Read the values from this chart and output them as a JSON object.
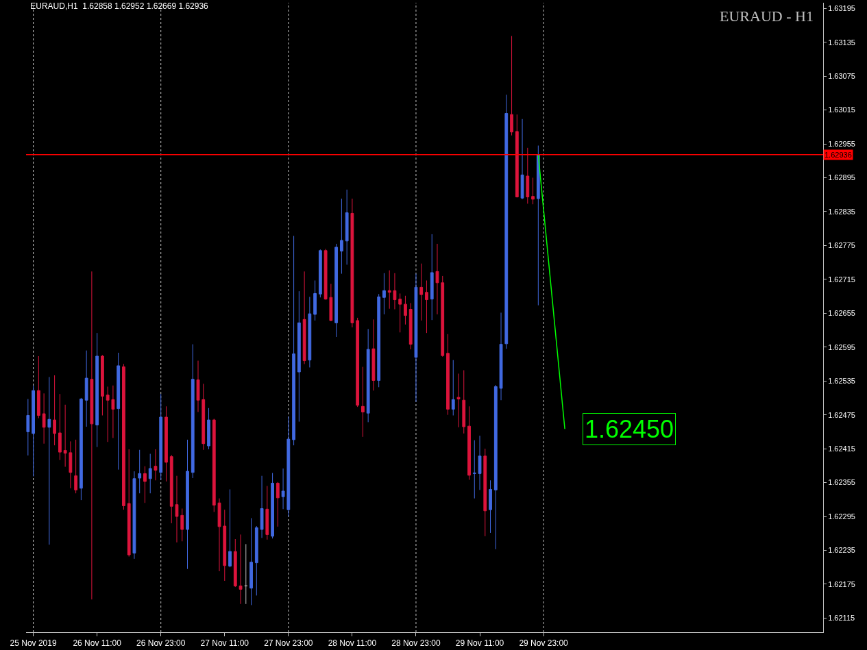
{
  "chart_data": {
    "type": "candlestick",
    "title": "EURAUD,H1  1.62858 1.62952 1.62669 1.62936",
    "subtitle": "EURAUD - H1",
    "x": [
      "2019-11-25T22:00",
      "2019-11-25T23:00",
      "2019-11-26T00:00",
      "2019-11-26T01:00",
      "2019-11-26T02:00",
      "2019-11-26T03:00",
      "2019-11-26T04:00",
      "2019-11-26T05:00",
      "2019-11-26T06:00",
      "2019-11-26T07:00",
      "2019-11-26T08:00",
      "2019-11-26T09:00",
      "2019-11-26T10:00",
      "2019-11-26T11:00",
      "2019-11-26T12:00",
      "2019-11-26T13:00",
      "2019-11-26T14:00",
      "2019-11-26T15:00",
      "2019-11-26T16:00",
      "2019-11-26T17:00",
      "2019-11-26T18:00",
      "2019-11-26T19:00",
      "2019-11-26T20:00",
      "2019-11-26T21:00",
      "2019-11-26T22:00",
      "2019-11-26T23:00",
      "2019-11-27T00:00",
      "2019-11-27T01:00",
      "2019-11-27T02:00",
      "2019-11-27T03:00",
      "2019-11-27T04:00",
      "2019-11-27T05:00",
      "2019-11-27T06:00",
      "2019-11-27T07:00",
      "2019-11-27T08:00",
      "2019-11-27T09:00",
      "2019-11-27T10:00",
      "2019-11-27T11:00",
      "2019-11-27T12:00",
      "2019-11-27T13:00",
      "2019-11-27T14:00",
      "2019-11-27T15:00",
      "2019-11-27T16:00",
      "2019-11-27T17:00",
      "2019-11-27T18:00",
      "2019-11-27T19:00",
      "2019-11-27T20:00",
      "2019-11-27T21:00",
      "2019-11-27T22:00",
      "2019-11-27T23:00",
      "2019-11-28T00:00",
      "2019-11-28T01:00",
      "2019-11-28T02:00",
      "2019-11-28T03:00",
      "2019-11-28T04:00",
      "2019-11-28T05:00",
      "2019-11-28T06:00",
      "2019-11-28T07:00",
      "2019-11-28T08:00",
      "2019-11-28T09:00",
      "2019-11-28T10:00",
      "2019-11-28T11:00",
      "2019-11-28T12:00",
      "2019-11-28T13:00",
      "2019-11-28T14:00",
      "2019-11-28T15:00",
      "2019-11-28T16:00",
      "2019-11-28T17:00",
      "2019-11-28T18:00",
      "2019-11-28T19:00",
      "2019-11-28T20:00",
      "2019-11-28T21:00",
      "2019-11-28T22:00",
      "2019-11-28T23:00",
      "2019-11-29T00:00",
      "2019-11-29T01:00",
      "2019-11-29T02:00",
      "2019-11-29T03:00",
      "2019-11-29T04:00",
      "2019-11-29T05:00",
      "2019-11-29T06:00",
      "2019-11-29T07:00",
      "2019-11-29T08:00",
      "2019-11-29T09:00",
      "2019-11-29T10:00",
      "2019-11-29T11:00",
      "2019-11-29T12:00",
      "2019-11-29T13:00",
      "2019-11-29T14:00",
      "2019-11-29T15:00",
      "2019-11-29T16:00",
      "2019-11-29T17:00",
      "2019-11-29T18:00",
      "2019-11-29T19:00",
      "2019-11-29T20:00",
      "2019-11-29T21:00",
      "2019-11-29T22:00"
    ],
    "ohlc": [
      [
        1.62445,
        1.62503,
        1.62403,
        1.62474
      ],
      [
        1.62442,
        1.62527,
        1.62366,
        1.62518
      ],
      [
        1.62518,
        1.62579,
        1.62469,
        1.62474
      ],
      [
        1.62477,
        1.62513,
        1.62424,
        1.62453
      ],
      [
        1.62453,
        1.62542,
        1.62245,
        1.62467
      ],
      [
        1.62466,
        1.62545,
        1.62421,
        1.62442
      ],
      [
        1.62443,
        1.62512,
        1.62395,
        1.62409
      ],
      [
        1.62412,
        1.62493,
        1.62383,
        1.62407
      ],
      [
        1.62408,
        1.62428,
        1.62345,
        1.62373
      ],
      [
        1.62367,
        1.62431,
        1.62336,
        1.62342
      ],
      [
        1.62345,
        1.62505,
        1.62324,
        1.62503
      ],
      [
        1.62501,
        1.62589,
        1.62454,
        1.6254
      ],
      [
        1.62538,
        1.62729,
        1.62148,
        1.62459
      ],
      [
        1.62457,
        1.6262,
        1.62418,
        1.62579
      ],
      [
        1.62579,
        1.62581,
        1.62474,
        1.62508
      ],
      [
        1.6251,
        1.62525,
        1.62427,
        1.62501
      ],
      [
        1.62502,
        1.62527,
        1.62434,
        1.62485
      ],
      [
        1.62486,
        1.62585,
        1.62378,
        1.62562
      ],
      [
        1.6256,
        1.62565,
        1.62307,
        1.62314
      ],
      [
        1.62318,
        1.62414,
        1.62224,
        1.62227
      ],
      [
        1.6223,
        1.62375,
        1.6222,
        1.62362
      ],
      [
        1.62363,
        1.62413,
        1.62336,
        1.62371
      ],
      [
        1.62371,
        1.62384,
        1.62319,
        1.62357
      ],
      [
        1.62362,
        1.62406,
        1.62336,
        1.6238
      ],
      [
        1.62384,
        1.62414,
        1.62359,
        1.62377
      ],
      [
        1.62373,
        1.62512,
        1.6236,
        1.62471
      ],
      [
        1.62471,
        1.6249,
        1.62357,
        1.62391
      ],
      [
        1.62401,
        1.62404,
        1.62283,
        1.62313
      ],
      [
        1.62316,
        1.62367,
        1.62249,
        1.62295
      ],
      [
        1.62297,
        1.62309,
        1.62251,
        1.62272
      ],
      [
        1.62272,
        1.62431,
        1.62202,
        1.62375
      ],
      [
        1.62373,
        1.626,
        1.62363,
        1.62538
      ],
      [
        1.62537,
        1.62571,
        1.6248,
        1.62501
      ],
      [
        1.62502,
        1.6253,
        1.62413,
        1.62424
      ],
      [
        1.6242,
        1.62487,
        1.62414,
        1.62466
      ],
      [
        1.62466,
        1.62468,
        1.62303,
        1.62315
      ],
      [
        1.62319,
        1.62327,
        1.62198,
        1.62277
      ],
      [
        1.62278,
        1.62307,
        1.62181,
        1.62208
      ],
      [
        1.62207,
        1.62343,
        1.62205,
        1.62233
      ],
      [
        1.62233,
        1.62255,
        1.6217,
        1.62172
      ],
      [
        1.62172,
        1.62263,
        1.6214,
        1.62166
      ],
      [
        1.62172,
        1.62246,
        1.6214,
        1.62172
      ],
      [
        1.62168,
        1.62292,
        1.62138,
        1.62214
      ],
      [
        1.62213,
        1.62278,
        1.62155,
        1.62275
      ],
      [
        1.62272,
        1.62367,
        1.62257,
        1.62309
      ],
      [
        1.62308,
        1.62349,
        1.62254,
        1.62263
      ],
      [
        1.6226,
        1.62372,
        1.62256,
        1.62354
      ],
      [
        1.62354,
        1.62356,
        1.62277,
        1.62328
      ],
      [
        1.6233,
        1.6238,
        1.62308,
        1.6234
      ],
      [
        1.62307,
        1.62472,
        1.62295,
        1.62432
      ],
      [
        1.62431,
        1.62792,
        1.62421,
        1.62583
      ],
      [
        1.62551,
        1.62694,
        1.62463,
        1.62638
      ],
      [
        1.62644,
        1.62729,
        1.62565,
        1.62571
      ],
      [
        1.62572,
        1.62684,
        1.62559,
        1.62654
      ],
      [
        1.62653,
        1.62713,
        1.62642,
        1.6269
      ],
      [
        1.62689,
        1.62768,
        1.62683,
        1.62766
      ],
      [
        1.62766,
        1.62769,
        1.62679,
        1.6268
      ],
      [
        1.62683,
        1.62707,
        1.62641,
        1.62642
      ],
      [
        1.62638,
        1.62778,
        1.62613,
        1.62772
      ],
      [
        1.62765,
        1.62858,
        1.62725,
        1.62784
      ],
      [
        1.62783,
        1.62874,
        1.62741,
        1.62833
      ],
      [
        1.62832,
        1.62858,
        1.6263,
        1.62638
      ],
      [
        1.62642,
        1.62647,
        1.62489,
        1.62492
      ],
      [
        1.6249,
        1.6256,
        1.62436,
        1.6248
      ],
      [
        1.62478,
        1.62627,
        1.62462,
        1.62591
      ],
      [
        1.62592,
        1.62644,
        1.62518,
        1.62536
      ],
      [
        1.62536,
        1.62689,
        1.62524,
        1.62684
      ],
      [
        1.62683,
        1.62726,
        1.62653,
        1.62695
      ],
      [
        1.62695,
        1.62731,
        1.62663,
        1.62692
      ],
      [
        1.62695,
        1.62726,
        1.62662,
        1.62679
      ],
      [
        1.6268,
        1.6269,
        1.62621,
        1.62671
      ],
      [
        1.62671,
        1.62686,
        1.62635,
        1.62651
      ],
      [
        1.62662,
        1.62673,
        1.62591,
        1.626
      ],
      [
        1.62577,
        1.62725,
        1.62498,
        1.62701
      ],
      [
        1.62701,
        1.62743,
        1.62642,
        1.62688
      ],
      [
        1.62692,
        1.62713,
        1.6262,
        1.62679
      ],
      [
        1.6268,
        1.62795,
        1.62643,
        1.62727
      ],
      [
        1.62729,
        1.62778,
        1.62653,
        1.62709
      ],
      [
        1.62709,
        1.62721,
        1.62578,
        1.6258
      ],
      [
        1.62584,
        1.62618,
        1.62475,
        1.62485
      ],
      [
        1.62485,
        1.62572,
        1.62474,
        1.62502
      ],
      [
        1.62506,
        1.62548,
        1.62453,
        1.62503
      ],
      [
        1.62501,
        1.62554,
        1.62442,
        1.62454
      ],
      [
        1.62455,
        1.6249,
        1.6236,
        1.62368
      ],
      [
        1.62371,
        1.6243,
        1.62327,
        1.62372
      ],
      [
        1.62371,
        1.62438,
        1.62342,
        1.62402
      ],
      [
        1.62402,
        1.62415,
        1.6226,
        1.62305
      ],
      [
        1.62307,
        1.62359,
        1.62266,
        1.62343
      ],
      [
        1.62342,
        1.62528,
        1.62237,
        1.62525
      ],
      [
        1.62522,
        1.62656,
        1.62501,
        1.626
      ],
      [
        1.62601,
        1.63042,
        1.62592,
        1.63009
      ],
      [
        1.63007,
        1.63146,
        1.6297,
        1.62976
      ],
      [
        1.62977,
        1.63007,
        1.6286,
        1.62861
      ],
      [
        1.62859,
        1.62999,
        1.62857,
        1.629
      ],
      [
        1.62898,
        1.62948,
        1.62849,
        1.62861
      ],
      [
        1.62862,
        1.62895,
        1.62848,
        1.62857
      ],
      [
        1.62858,
        1.62952,
        1.62669,
        1.62936
      ]
    ],
    "colors": [
      "#4169e1",
      "#4169e1",
      "#dc143c",
      "#dc143c",
      "#4169e1",
      "#dc143c",
      "#dc143c",
      "#dc143c",
      "#dc143c",
      "#dc143c",
      "#4169e1",
      "#4169e1",
      "#dc143c",
      "#4169e1",
      "#dc143c",
      "#dc143c",
      "#dc143c",
      "#4169e1",
      "#dc143c",
      "#dc143c",
      "#4169e1",
      "#4169e1",
      "#dc143c",
      "#4169e1",
      "#dc143c",
      "#4169e1",
      "#dc143c",
      "#dc143c",
      "#dc143c",
      "#dc143c",
      "#4169e1",
      "#4169e1",
      "#dc143c",
      "#dc143c",
      "#4169e1",
      "#dc143c",
      "#dc143c",
      "#dc143c",
      "#4169e1",
      "#dc143c",
      "#dc143c",
      "#c0c0c0",
      "#4169e1",
      "#4169e1",
      "#4169e1",
      "#dc143c",
      "#4169e1",
      "#dc143c",
      "#4169e1",
      "#4169e1",
      "#4169e1",
      "#4169e1",
      "#dc143c",
      "#4169e1",
      "#4169e1",
      "#4169e1",
      "#dc143c",
      "#dc143c",
      "#4169e1",
      "#4169e1",
      "#4169e1",
      "#dc143c",
      "#dc143c",
      "#dc143c",
      "#4169e1",
      "#dc143c",
      "#4169e1",
      "#4169e1",
      "#dc143c",
      "#dc143c",
      "#dc143c",
      "#dc143c",
      "#dc143c",
      "#4169e1",
      "#dc143c",
      "#dc143c",
      "#4169e1",
      "#dc143c",
      "#dc143c",
      "#dc143c",
      "#4169e1",
      "#dc143c",
      "#dc143c",
      "#dc143c",
      "#4169e1",
      "#4169e1",
      "#dc143c",
      "#4169e1",
      "#4169e1",
      "#4169e1",
      "#4169e1",
      "#dc143c",
      "#dc143c",
      "#4169e1",
      "#dc143c",
      "#dc143c",
      "#4169e1"
    ],
    "series": [
      {
        "type": "line",
        "x": [
          "2019-11-29T22:00",
          "2019-11-30T03:00"
        ],
        "values": [
          1.62936,
          1.6245
        ],
        "color": "#00ff00"
      }
    ],
    "annotations": [
      {
        "text": "1.62450",
        "x": "2019-11-30T03:00",
        "y": 1.6245
      }
    ],
    "ref_lines": [
      {
        "axis": "y",
        "value": 1.62936,
        "label": "1.62936",
        "color": "#ff0000",
        "line_style": "solid"
      },
      {
        "axis": "x",
        "value": "2019-11-25T23:00",
        "color": "#c0c0c0",
        "line_style": "dashed"
      },
      {
        "axis": "x",
        "value": "2019-11-26T23:00",
        "color": "#c0c0c0",
        "line_style": "dashed"
      },
      {
        "axis": "x",
        "value": "2019-11-27T23:00",
        "color": "#c0c0c0",
        "line_style": "dashed"
      },
      {
        "axis": "x",
        "value": "2019-11-28T23:00",
        "color": "#c0c0c0",
        "line_style": "dashed"
      },
      {
        "axis": "x",
        "value": "2019-11-29T23:00",
        "color": "#c0c0c0",
        "line_style": "dashed"
      }
    ],
    "xlim": [
      "2019-11-25T21:38",
      "2019-12-02T03:36"
    ],
    "xticks": [
      {
        "value": "2019-11-25T23:00",
        "label": "25 Nov 2019"
      },
      {
        "value": "2019-11-26T11:00",
        "label": "26 Nov 11:00"
      },
      {
        "value": "2019-11-26T23:00",
        "label": "26 Nov 23:00"
      },
      {
        "value": "2019-11-27T11:00",
        "label": "27 Nov 11:00"
      },
      {
        "value": "2019-11-27T23:00",
        "label": "27 Nov 23:00"
      },
      {
        "value": "2019-11-28T11:00",
        "label": "28 Nov 11:00"
      },
      {
        "value": "2019-11-28T23:00",
        "label": "28 Nov 23:00"
      },
      {
        "value": "2019-11-29T11:00",
        "label": "29 Nov 11:00"
      },
      {
        "value": "2019-11-29T23:00",
        "label": "29 Nov 23:00"
      }
    ],
    "ylim": [
      1.6209,
      1.63205
    ],
    "yticks": [
      1.62115,
      1.62175,
      1.62235,
      1.62295,
      1.62355,
      1.62415,
      1.62475,
      1.62535,
      1.62595,
      1.62655,
      1.62715,
      1.62775,
      1.62835,
      1.62895,
      1.62955,
      1.63015,
      1.63075,
      1.63135,
      1.63195
    ]
  }
}
